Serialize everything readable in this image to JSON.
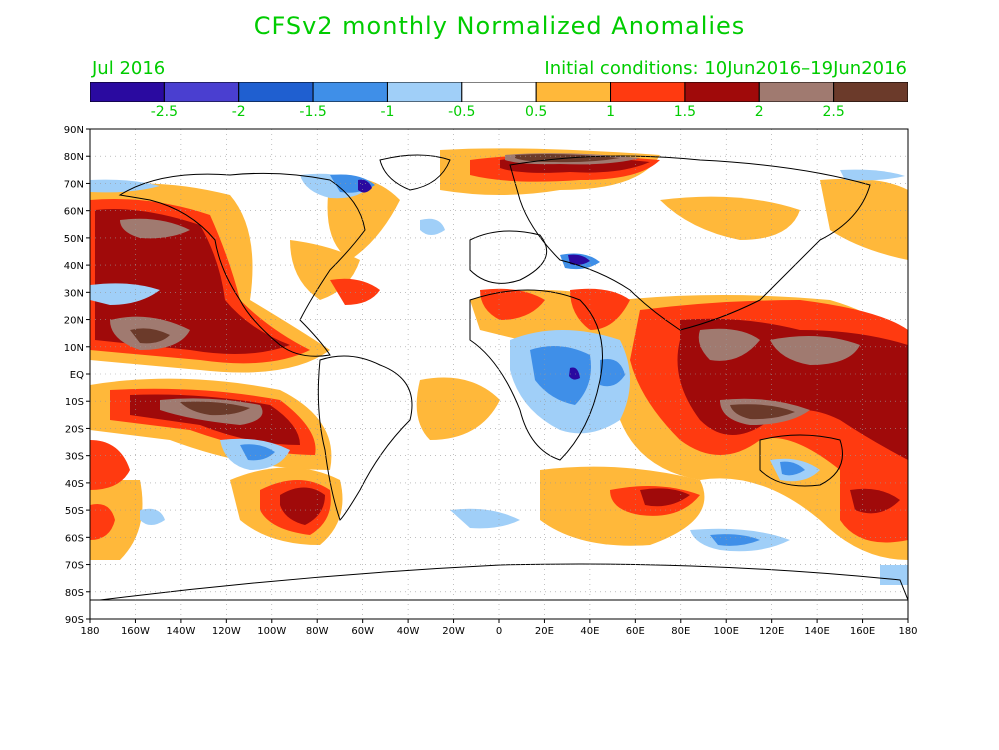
{
  "title": "CFSv2 monthly Normalized Anomalies",
  "month": "Jul 2016",
  "initial_conditions": "Initial conditions: 10Jun2016–19Jun2016",
  "colorbar": {
    "colors": [
      "#2a0aa0",
      "#4a3fd0",
      "#1f5fd0",
      "#3f8fe8",
      "#a0cff8",
      "#ffffff",
      "#ffb83a",
      "#ff3a10",
      "#a00a0a",
      "#a07a70",
      "#6b3a2a"
    ],
    "tick_labels": [
      "-2.5",
      "-2",
      "-1.5",
      "-1",
      "-0.5",
      "0.5",
      "1",
      "1.5",
      "2",
      "2.5"
    ]
  },
  "map": {
    "lat_labels": [
      "90N",
      "80N",
      "70N",
      "60N",
      "50N",
      "40N",
      "30N",
      "20N",
      "10N",
      "EQ",
      "10S",
      "20S",
      "30S",
      "40S",
      "50S",
      "60S",
      "70S",
      "80S",
      "90S"
    ],
    "lon_labels": [
      "180",
      "160W",
      "140W",
      "120W",
      "100W",
      "80W",
      "60W",
      "40W",
      "20W",
      "0",
      "20E",
      "40E",
      "60E",
      "80E",
      "100E",
      "120E",
      "140E",
      "160E",
      "180"
    ]
  }
}
